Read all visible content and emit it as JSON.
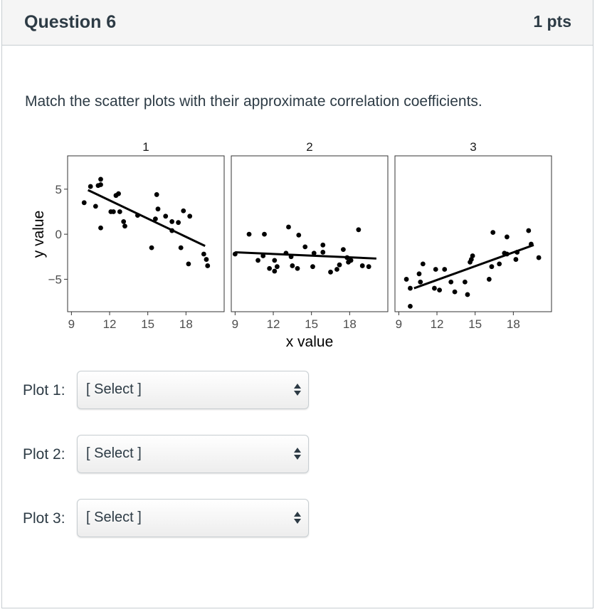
{
  "question": {
    "title": "Question 6",
    "points": "1 pts",
    "prompt": "Match the scatter plots with their approximate correlation coefficients."
  },
  "chart_data": {
    "type": "scatter",
    "xlabel": "x value",
    "ylabel": "y value",
    "xticks": [
      9,
      12,
      15,
      18
    ],
    "yticks": [
      5,
      0,
      -5
    ],
    "xlim": [
      8.7,
      21.0
    ],
    "ylim": [
      -8.6,
      8.7
    ],
    "facets": [
      {
        "label": "1",
        "points": [
          [
            10.0,
            3.5
          ],
          [
            10.5,
            5.3
          ],
          [
            10.9,
            3.1
          ],
          [
            11.1,
            5.4
          ],
          [
            11.3,
            5.5
          ],
          [
            11.3,
            6.1
          ],
          [
            11.3,
            0.7
          ],
          [
            12.1,
            2.5
          ],
          [
            12.3,
            2.5
          ],
          [
            12.5,
            4.3
          ],
          [
            12.7,
            4.5
          ],
          [
            12.8,
            2.5
          ],
          [
            13.1,
            1.4
          ],
          [
            13.2,
            0.9
          ],
          [
            14.2,
            2.1
          ],
          [
            15.3,
            -1.5
          ],
          [
            15.6,
            1.7
          ],
          [
            15.7,
            4.4
          ],
          [
            15.8,
            2.8
          ],
          [
            16.4,
            2.0
          ],
          [
            16.9,
            0.4
          ],
          [
            16.9,
            1.4
          ],
          [
            17.4,
            1.3
          ],
          [
            17.6,
            -1.5
          ],
          [
            17.8,
            2.6
          ],
          [
            18.3,
            2.0
          ],
          [
            18.2,
            -3.3
          ],
          [
            19.4,
            -2.2
          ],
          [
            19.6,
            -2.8
          ],
          [
            19.7,
            -3.5
          ]
        ],
        "trend": [
          [
            10.3,
            4.9
          ],
          [
            19.5,
            -1.3
          ]
        ]
      },
      {
        "label": "2",
        "points": [
          [
            9.0,
            -2.2
          ],
          [
            10.1,
            0.0
          ],
          [
            10.8,
            -2.9
          ],
          [
            11.3,
            0.0
          ],
          [
            11.2,
            -2.4
          ],
          [
            11.7,
            -3.8
          ],
          [
            12.1,
            -2.9
          ],
          [
            12.1,
            -4.1
          ],
          [
            12.3,
            -3.6
          ],
          [
            13.0,
            -2.1
          ],
          [
            13.2,
            0.8
          ],
          [
            13.4,
            -2.5
          ],
          [
            13.5,
            -3.5
          ],
          [
            13.9,
            -3.8
          ],
          [
            14.0,
            -0.1
          ],
          [
            14.5,
            -1.4
          ],
          [
            15.1,
            -3.6
          ],
          [
            15.2,
            -2.1
          ],
          [
            15.9,
            -2.0
          ],
          [
            15.9,
            -1.2
          ],
          [
            16.5,
            -4.2
          ],
          [
            17.0,
            -3.9
          ],
          [
            17.2,
            -3.4
          ],
          [
            17.5,
            -1.7
          ],
          [
            17.8,
            -2.6
          ],
          [
            17.9,
            -3.1
          ],
          [
            18.1,
            -2.9
          ],
          [
            18.7,
            0.5
          ],
          [
            19.0,
            -3.5
          ],
          [
            19.5,
            -3.6
          ]
        ],
        "trend": [
          [
            9.0,
            -2.0
          ],
          [
            20.1,
            -2.7
          ]
        ]
      },
      {
        "label": "3",
        "points": [
          [
            9.6,
            -5.0
          ],
          [
            9.9,
            -6.0
          ],
          [
            9.9,
            -8.0
          ],
          [
            10.6,
            -4.4
          ],
          [
            10.7,
            -5.3
          ],
          [
            10.9,
            -3.3
          ],
          [
            11.8,
            -6.0
          ],
          [
            11.9,
            -3.9
          ],
          [
            12.2,
            -6.2
          ],
          [
            12.6,
            -3.9
          ],
          [
            13.1,
            -5.3
          ],
          [
            13.4,
            -6.4
          ],
          [
            14.2,
            -5.3
          ],
          [
            14.4,
            -6.7
          ],
          [
            14.6,
            -3.1
          ],
          [
            14.7,
            -2.8
          ],
          [
            14.8,
            -2.4
          ],
          [
            16.1,
            -5.0
          ],
          [
            16.3,
            -3.6
          ],
          [
            16.4,
            0.2
          ],
          [
            16.9,
            -3.3
          ],
          [
            17.3,
            -2.1
          ],
          [
            17.5,
            -2.2
          ],
          [
            17.5,
            -0.3
          ],
          [
            18.2,
            -2.8
          ],
          [
            18.3,
            -2.0
          ],
          [
            19.2,
            0.4
          ],
          [
            19.4,
            -1.1
          ],
          [
            20.0,
            -2.6
          ]
        ],
        "trend": [
          [
            10.2,
            -6.0
          ],
          [
            19.6,
            -1.2
          ]
        ]
      }
    ]
  },
  "answers": [
    {
      "label": "Plot 1:",
      "value": "[ Select ]"
    },
    {
      "label": "Plot 2:",
      "value": "[ Select ]"
    },
    {
      "label": "Plot 3:",
      "value": "[ Select ]"
    }
  ]
}
